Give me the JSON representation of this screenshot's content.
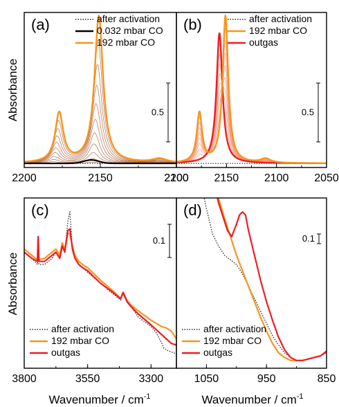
{
  "figure": {
    "ylabel": "Absorbance",
    "xlabel": "Wavenumber / cm",
    "xlabel_exponent": "-1"
  },
  "panels": [
    {
      "label": "(a)",
      "scalebar_label": "0.5",
      "legend": [
        {
          "text": "after activation",
          "style": "dotted",
          "color": "#222222"
        },
        {
          "text": "0.032 mbar CO",
          "style": "solid",
          "color": "#000000"
        },
        {
          "text": "192 mbar CO",
          "style": "solid",
          "color": "#f7941d"
        }
      ]
    },
    {
      "label": "(b)",
      "scalebar_label": "0.5",
      "legend": [
        {
          "text": "after activation",
          "style": "dotted",
          "color": "#222222"
        },
        {
          "text": "192 mbar CO",
          "style": "solid",
          "color": "#f7941d"
        },
        {
          "text": "outgas",
          "style": "solid",
          "color": "#ee1c25"
        }
      ]
    },
    {
      "label": "(c)",
      "scalebar_label": "0.1",
      "legend": [
        {
          "text": "after activation",
          "style": "dotted",
          "color": "#222222"
        },
        {
          "text": "192 mbar CO",
          "style": "solid",
          "color": "#f7941d"
        },
        {
          "text": "outgas",
          "style": "solid",
          "color": "#ee1c25"
        }
      ]
    },
    {
      "label": "(d)",
      "scalebar_label": "0.1",
      "legend": [
        {
          "text": "after activation",
          "style": "dotted",
          "color": "#222222"
        },
        {
          "text": "192 mbar CO",
          "style": "solid",
          "color": "#f7941d"
        },
        {
          "text": "outgas",
          "style": "solid",
          "color": "#ee1c25"
        }
      ]
    }
  ],
  "chart_data": [
    {
      "panel": "a",
      "type": "line",
      "xlim": [
        2200,
        2100
      ],
      "xscale": "reversed",
      "ticks": [
        2200,
        2150,
        2100
      ],
      "colors": {
        "activation": "#222222",
        "low": "#000000",
        "high": "#f7941d",
        "intermediate": "#a0522d"
      },
      "peaks_high": [
        {
          "x": 2177,
          "height": 0.36,
          "width": 3.2
        },
        {
          "x": 2151,
          "height": 1.07,
          "width": 3.4
        },
        {
          "x": 2111,
          "height": 0.03,
          "width": 6
        }
      ],
      "intermediate_count": 10,
      "peak_low": {
        "x": 2156,
        "height": 0.025,
        "width": 5
      },
      "baseline": 0.0
    },
    {
      "panel": "b",
      "type": "line",
      "xlim": [
        2200,
        2050
      ],
      "xscale": "reversed",
      "ticks": [
        2200,
        2150,
        2100,
        2050
      ],
      "colors": {
        "activation": "#222222",
        "high": "#f7941d",
        "outgas": "#ee1c25",
        "intermediate": "#f58a6e"
      },
      "peaks_high": [
        {
          "x": 2177,
          "height": 0.36,
          "width": 3.2
        },
        {
          "x": 2151,
          "height": 1.07,
          "width": 3.4
        },
        {
          "x": 2111,
          "height": 0.03,
          "width": 6
        }
      ],
      "peak_outgas": {
        "x": 2157,
        "height": 0.95,
        "width": 3.6
      },
      "intermediate_count": 8,
      "baseline": 0.0
    },
    {
      "panel": "c",
      "type": "line",
      "xlim": [
        3800,
        3200
      ],
      "xscale": "reversed",
      "ticks": [
        3800,
        3550,
        3300
      ],
      "series": [
        {
          "name": "after activation",
          "style": "dotted",
          "color": "#222222",
          "x": [
            3800,
            3770,
            3748,
            3745,
            3742,
            3720,
            3690,
            3675,
            3660,
            3650,
            3640,
            3628,
            3620,
            3610,
            3600,
            3585,
            3570,
            3550,
            3500,
            3450,
            3420,
            3410,
            3395,
            3380,
            3350,
            3300,
            3280,
            3260,
            3250,
            3230,
            3210,
            3200
          ],
          "y": [
            0.7,
            0.66,
            0.62,
            0.8,
            0.62,
            0.62,
            0.66,
            0.7,
            0.66,
            0.76,
            0.7,
            0.9,
            0.96,
            0.72,
            0.66,
            0.62,
            0.6,
            0.57,
            0.5,
            0.43,
            0.39,
            0.43,
            0.38,
            0.35,
            0.28,
            0.22,
            0.18,
            0.12,
            0.08,
            0.06,
            0.05,
            0.04
          ]
        },
        {
          "name": "192 mbar CO",
          "style": "solid",
          "color": "#f7941d",
          "x": [
            3800,
            3770,
            3748,
            3745,
            3742,
            3720,
            3690,
            3675,
            3660,
            3650,
            3640,
            3628,
            3620,
            3610,
            3600,
            3585,
            3570,
            3550,
            3500,
            3450,
            3420,
            3410,
            3395,
            3380,
            3350,
            3300,
            3260,
            3240,
            3220,
            3200
          ],
          "y": [
            0.72,
            0.68,
            0.65,
            0.8,
            0.65,
            0.66,
            0.7,
            0.72,
            0.68,
            0.76,
            0.72,
            0.82,
            0.82,
            0.74,
            0.68,
            0.64,
            0.62,
            0.6,
            0.52,
            0.45,
            0.4,
            0.44,
            0.39,
            0.36,
            0.32,
            0.26,
            0.22,
            0.21,
            0.19,
            0.14
          ]
        },
        {
          "name": "outgas",
          "style": "solid",
          "color": "#ee1c25",
          "x": [
            3800,
            3770,
            3748,
            3745,
            3742,
            3720,
            3690,
            3675,
            3660,
            3650,
            3640,
            3628,
            3620,
            3610,
            3600,
            3585,
            3570,
            3550,
            3500,
            3450,
            3420,
            3410,
            3395,
            3380,
            3350,
            3300,
            3260,
            3240,
            3220,
            3200
          ],
          "y": [
            0.7,
            0.66,
            0.64,
            0.8,
            0.64,
            0.64,
            0.68,
            0.7,
            0.66,
            0.74,
            0.7,
            0.84,
            0.85,
            0.72,
            0.66,
            0.62,
            0.6,
            0.58,
            0.5,
            0.44,
            0.4,
            0.44,
            0.38,
            0.35,
            0.3,
            0.23,
            0.17,
            0.14,
            0.11,
            0.1
          ]
        }
      ]
    },
    {
      "panel": "d",
      "type": "line",
      "xlim": [
        1100,
        850
      ],
      "xscale": "reversed",
      "ticks": [
        1050,
        950,
        850
      ],
      "series": [
        {
          "name": "after activation",
          "style": "dotted",
          "color": "#222222",
          "x": [
            1062,
            1050,
            1040,
            1030,
            1020,
            1010,
            1000,
            990,
            980,
            970,
            960,
            950,
            940,
            930,
            920,
            910,
            900,
            890,
            880,
            870,
            860,
            850
          ],
          "y": [
            1.2,
            0.98,
            0.82,
            0.74,
            0.68,
            0.65,
            0.62,
            0.56,
            0.48,
            0.4,
            0.32,
            0.24,
            0.16,
            0.1,
            0.05,
            0.02,
            0.0,
            0.0,
            0.01,
            0.02,
            0.03,
            0.05
          ]
        },
        {
          "name": "192 mbar CO",
          "style": "solid",
          "color": "#f7941d",
          "x": [
            1040,
            1030,
            1020,
            1010,
            1000,
            990,
            980,
            970,
            960,
            950,
            940,
            930,
            920,
            910,
            900,
            890,
            880,
            870,
            860,
            850
          ],
          "y": [
            1.2,
            1.05,
            0.92,
            0.8,
            0.68,
            0.58,
            0.48,
            0.38,
            0.28,
            0.19,
            0.11,
            0.05,
            0.02,
            0.0,
            0.0,
            0.0,
            0.01,
            0.02,
            0.03,
            0.06
          ]
        },
        {
          "name": "outgas",
          "style": "solid",
          "color": "#ee1c25",
          "x": [
            1040,
            1030,
            1020,
            1015,
            1008,
            1000,
            995,
            990,
            985,
            980,
            970,
            960,
            950,
            940,
            930,
            920,
            910,
            900,
            890,
            880,
            870,
            860,
            850
          ],
          "y": [
            1.2,
            1.02,
            0.9,
            0.84,
            0.8,
            0.88,
            0.94,
            0.96,
            0.94,
            0.84,
            0.68,
            0.52,
            0.38,
            0.26,
            0.15,
            0.07,
            0.02,
            0.0,
            0.0,
            0.01,
            0.02,
            0.03,
            0.06
          ]
        }
      ]
    }
  ]
}
